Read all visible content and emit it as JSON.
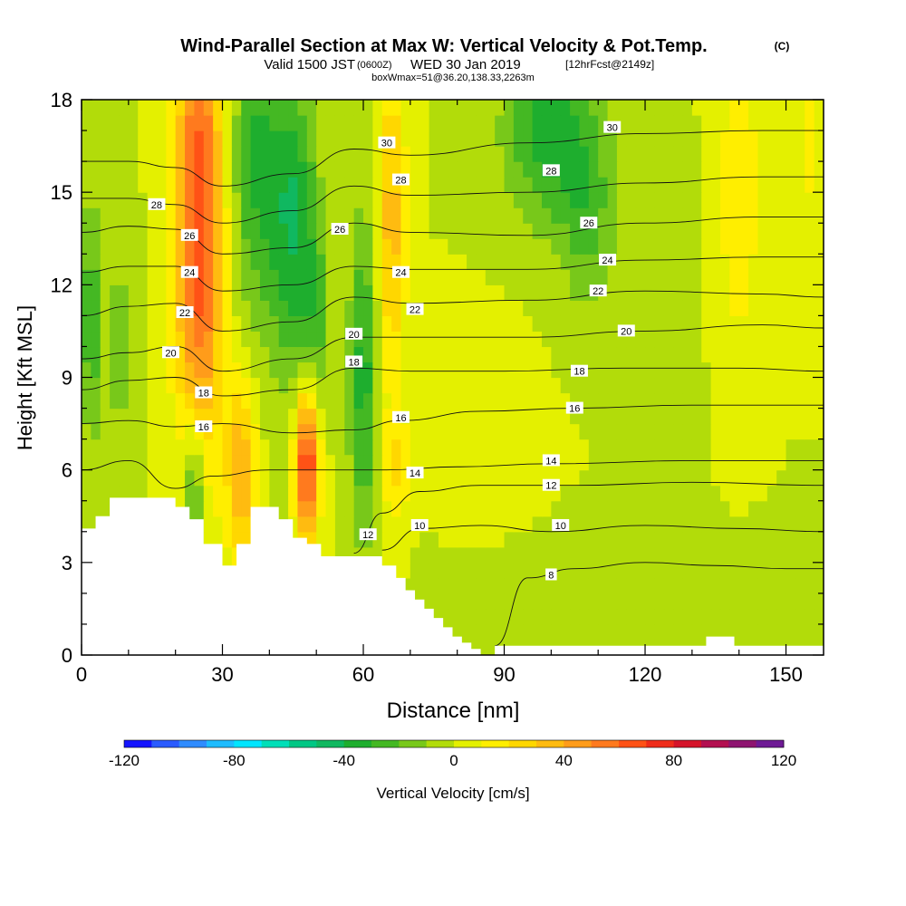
{
  "header": {
    "title": "Wind-Parallel Section at Max W: Vertical Velocity & Pot.Temp.",
    "copyright": "(C)",
    "valid_prefix": "Valid 1500 JST",
    "valid_utc": "(0600Z)",
    "valid_date": "WED 30 Jan 2019",
    "forecast_info": "[12hrFcst@2149z]",
    "box_info": "boxWmax=51@36.20,138.33,2263m"
  },
  "chart_data": {
    "type": "heatmap",
    "xlabel": "Distance [nm]",
    "ylabel": "Height [Kft MSL]",
    "xlim": [
      0,
      158
    ],
    "ylim": [
      0,
      18
    ],
    "x_ticks": [
      0,
      30,
      60,
      90,
      120,
      150
    ],
    "y_ticks": [
      0,
      3,
      6,
      9,
      12,
      15,
      18
    ],
    "x_tick_labels": [
      "0",
      "30",
      "60",
      "90",
      "120",
      "150"
    ],
    "y_tick_labels": [
      "0",
      "3",
      "6",
      "9",
      "12",
      "15",
      "18"
    ],
    "colorbar": {
      "label": "Vertical Velocity [cm/s]",
      "min": -120,
      "max": 120,
      "step": 10,
      "tick_values": [
        -120,
        -80,
        -40,
        0,
        40,
        80,
        120
      ],
      "tick_labels": [
        "-120",
        "-80",
        "-40",
        "0",
        "40",
        "80",
        "120"
      ],
      "colors": [
        "#1414ff",
        "#2a5bff",
        "#2f8cff",
        "#1ebcff",
        "#00e5ff",
        "#00dfb8",
        "#00c784",
        "#10b860",
        "#1eae2e",
        "#44b823",
        "#78c81a",
        "#b2dc0a",
        "#e4f000",
        "#ffee00",
        "#ffd700",
        "#ffbb10",
        "#ff9c1a",
        "#ff7a1e",
        "#ff5216",
        "#ef2c1a",
        "#d5142a",
        "#b31050",
        "#8e1470",
        "#6e1a95"
      ]
    },
    "terrain": [
      [
        0,
        4.1
      ],
      [
        3,
        4.1
      ],
      [
        3,
        4.5
      ],
      [
        6,
        4.5
      ],
      [
        6,
        5.1
      ],
      [
        20,
        5.1
      ],
      [
        20,
        4.8
      ],
      [
        23,
        4.8
      ],
      [
        23,
        4.4
      ],
      [
        26,
        4.4
      ],
      [
        26,
        3.6
      ],
      [
        30,
        3.6
      ],
      [
        30,
        2.9
      ],
      [
        33,
        2.9
      ],
      [
        33,
        3.6
      ],
      [
        36,
        3.6
      ],
      [
        36,
        4.8
      ],
      [
        42,
        4.8
      ],
      [
        42,
        4.4
      ],
      [
        45,
        4.4
      ],
      [
        45,
        3.8
      ],
      [
        48,
        3.8
      ],
      [
        48,
        3.6
      ],
      [
        51,
        3.6
      ],
      [
        51,
        3.2
      ],
      [
        64,
        3.2
      ],
      [
        64,
        2.9
      ],
      [
        67,
        2.9
      ],
      [
        67,
        2.5
      ],
      [
        69,
        2.5
      ],
      [
        69,
        2.1
      ],
      [
        71,
        2.1
      ],
      [
        71,
        1.8
      ],
      [
        73,
        1.8
      ],
      [
        73,
        1.5
      ],
      [
        75,
        1.5
      ],
      [
        75,
        1.2
      ],
      [
        77,
        1.2
      ],
      [
        77,
        0.9
      ],
      [
        79,
        0.9
      ],
      [
        79,
        0.6
      ],
      [
        81,
        0.6
      ],
      [
        81,
        0.4
      ],
      [
        83,
        0.4
      ],
      [
        83,
        0.2
      ],
      [
        85,
        0.2
      ],
      [
        85,
        0.0
      ],
      [
        88,
        0.0
      ],
      [
        88,
        0.3
      ],
      [
        133,
        0.3
      ],
      [
        133,
        0.6
      ],
      [
        139,
        0.6
      ],
      [
        139,
        0.3
      ],
      [
        158,
        0.3
      ]
    ],
    "velocity_features": [
      {
        "x": 25,
        "y_center": 14,
        "half_width": 5,
        "half_height": 8,
        "value": 70
      },
      {
        "x": 34,
        "y_center": 6,
        "half_width": 3,
        "half_height": 3,
        "value": 40
      },
      {
        "x": 8,
        "y_center": 10,
        "half_width": 3,
        "half_height": 4,
        "value": -15
      },
      {
        "x": 2,
        "y_center": 11,
        "half_width": 2,
        "half_height": 4,
        "value": -30
      },
      {
        "x": 24,
        "y_center": 5,
        "half_width": 2.5,
        "half_height": 3,
        "value": -40
      },
      {
        "x": 37,
        "y_center": 16,
        "half_width": 5,
        "half_height": 5,
        "value": -30
      },
      {
        "x": 45,
        "y_center": 14,
        "half_width": 5,
        "half_height": 5,
        "value": -40
      },
      {
        "x": 50,
        "y_center": 11,
        "half_width": 3,
        "half_height": 3,
        "value": -20
      },
      {
        "x": 48,
        "y_center": 6.2,
        "half_width": 2.5,
        "half_height": 2.5,
        "value": 75
      },
      {
        "x": 60,
        "y_center": 9,
        "half_width": 3,
        "half_height": 5,
        "value": -35
      },
      {
        "x": 66,
        "y_center": 14,
        "half_width": 3,
        "half_height": 5,
        "value": 35
      },
      {
        "x": 67,
        "y_center": 6,
        "half_width": 3,
        "half_height": 2,
        "value": 20
      },
      {
        "x": 100,
        "y_center": 17,
        "half_width": 10,
        "half_height": 3,
        "value": -35
      },
      {
        "x": 108,
        "y_center": 14,
        "half_width": 6,
        "half_height": 3,
        "value": -20
      },
      {
        "x": 140,
        "y_center": 15,
        "half_width": 4,
        "half_height": 5,
        "value": 20
      },
      {
        "x": 155,
        "y_center": 17,
        "half_width": 3,
        "half_height": 3,
        "value": 15
      },
      {
        "x": 128,
        "y_center": 9,
        "half_width": 3,
        "half_height": 5,
        "value": -5
      },
      {
        "x": 110,
        "y_center": 2,
        "half_width": 28,
        "half_height": 1.8,
        "value": -8
      },
      {
        "x": 86,
        "y_center": 7,
        "half_width": 10,
        "half_height": 3,
        "value": 7
      }
    ],
    "theta_contours": [
      {
        "label": "8",
        "points": [
          [
            88,
            0.3
          ],
          [
            95,
            2.5
          ],
          [
            105,
            2.8
          ],
          [
            120,
            3.0
          ],
          [
            135,
            2.9
          ],
          [
            150,
            2.8
          ],
          [
            158,
            2.8
          ]
        ],
        "label_at": [
          100,
          2.6
        ]
      },
      {
        "label": "10",
        "points": [
          [
            64,
            3.4
          ],
          [
            72,
            4.1
          ],
          [
            85,
            4.2
          ],
          [
            100,
            4.0
          ],
          [
            120,
            4.2
          ],
          [
            140,
            4.1
          ],
          [
            158,
            4.0
          ]
        ],
        "label_at": [
          102,
          4.2
        ]
      },
      {
        "label": "12",
        "points": [
          [
            58,
            3.3
          ],
          [
            64,
            4.6
          ],
          [
            72,
            5.3
          ],
          [
            85,
            5.5
          ],
          [
            105,
            5.5
          ],
          [
            130,
            5.6
          ],
          [
            158,
            5.5
          ]
        ],
        "label_at": [
          100,
          5.5
        ]
      },
      {
        "label": "14",
        "points": [
          [
            0,
            6.0
          ],
          [
            10,
            6.3
          ],
          [
            20,
            5.4
          ],
          [
            28,
            5.8
          ],
          [
            40,
            6.0
          ],
          [
            55,
            6.0
          ],
          [
            65,
            6.0
          ],
          [
            80,
            6.1
          ],
          [
            100,
            6.2
          ],
          [
            130,
            6.3
          ],
          [
            158,
            6.3
          ]
        ],
        "label_at": [
          100,
          6.3
        ]
      },
      {
        "label": "16",
        "points": [
          [
            0,
            7.5
          ],
          [
            10,
            7.6
          ],
          [
            20,
            7.4
          ],
          [
            30,
            7.5
          ],
          [
            45,
            7.2
          ],
          [
            58,
            7.3
          ],
          [
            68,
            7.6
          ],
          [
            85,
            7.9
          ],
          [
            105,
            8.0
          ],
          [
            130,
            8.1
          ],
          [
            158,
            8.1
          ]
        ],
        "label_at": [
          105,
          8.0
        ]
      },
      {
        "label": "18",
        "points": [
          [
            0,
            8.6
          ],
          [
            10,
            8.9
          ],
          [
            20,
            9.0
          ],
          [
            30,
            8.4
          ],
          [
            45,
            8.6
          ],
          [
            58,
            9.3
          ],
          [
            70,
            9.2
          ],
          [
            90,
            9.2
          ],
          [
            115,
            9.3
          ],
          [
            140,
            9.3
          ],
          [
            158,
            9.2
          ]
        ],
        "label_at": [
          106,
          9.2
        ]
      },
      {
        "label": "20",
        "points": [
          [
            0,
            9.6
          ],
          [
            10,
            9.8
          ],
          [
            20,
            10.0
          ],
          [
            30,
            9.2
          ],
          [
            45,
            9.6
          ],
          [
            58,
            10.3
          ],
          [
            70,
            10.3
          ],
          [
            95,
            10.3
          ],
          [
            120,
            10.5
          ],
          [
            145,
            10.7
          ],
          [
            158,
            10.6
          ]
        ],
        "label_at": [
          116,
          10.5
        ]
      },
      {
        "label": "22",
        "points": [
          [
            0,
            11.0
          ],
          [
            10,
            11.3
          ],
          [
            20,
            11.4
          ],
          [
            30,
            10.5
          ],
          [
            45,
            10.8
          ],
          [
            58,
            11.6
          ],
          [
            70,
            11.4
          ],
          [
            95,
            11.5
          ],
          [
            120,
            11.8
          ],
          [
            145,
            11.7
          ],
          [
            158,
            11.6
          ]
        ],
        "label_at": [
          110,
          11.8
        ]
      },
      {
        "label": "24",
        "points": [
          [
            0,
            12.4
          ],
          [
            10,
            12.6
          ],
          [
            20,
            12.6
          ],
          [
            30,
            11.8
          ],
          [
            45,
            12.0
          ],
          [
            58,
            12.6
          ],
          [
            70,
            12.5
          ],
          [
            95,
            12.5
          ],
          [
            120,
            12.8
          ],
          [
            145,
            12.9
          ],
          [
            158,
            12.9
          ]
        ],
        "label_at": [
          112,
          12.8
        ]
      },
      {
        "label": "26",
        "points": [
          [
            0,
            13.7
          ],
          [
            10,
            13.9
          ],
          [
            20,
            13.8
          ],
          [
            30,
            13.0
          ],
          [
            45,
            13.2
          ],
          [
            58,
            14.0
          ],
          [
            70,
            13.7
          ],
          [
            95,
            13.6
          ],
          [
            120,
            14.0
          ],
          [
            145,
            14.2
          ],
          [
            158,
            14.2
          ]
        ],
        "label_at": [
          108,
          14.0
        ]
      },
      {
        "label": "28",
        "points": [
          [
            0,
            14.8
          ],
          [
            10,
            14.8
          ],
          [
            20,
            14.6
          ],
          [
            30,
            14.0
          ],
          [
            45,
            14.4
          ],
          [
            58,
            15.2
          ],
          [
            70,
            14.9
          ],
          [
            95,
            15.0
          ],
          [
            120,
            15.3
          ],
          [
            145,
            15.5
          ],
          [
            158,
            15.5
          ]
        ],
        "label_at": [
          100,
          15.7
        ]
      },
      {
        "label": "30",
        "points": [
          [
            0,
            16.0
          ],
          [
            10,
            16.0
          ],
          [
            20,
            15.8
          ],
          [
            30,
            15.2
          ],
          [
            45,
            15.6
          ],
          [
            58,
            16.4
          ],
          [
            70,
            16.2
          ],
          [
            95,
            16.6
          ],
          [
            120,
            16.9
          ],
          [
            145,
            17.0
          ],
          [
            158,
            17.0
          ]
        ],
        "label_at": [
          113,
          17.1
        ]
      }
    ],
    "plot_labels": [
      {
        "text": "28",
        "at": [
          16,
          14.6
        ]
      },
      {
        "text": "26",
        "at": [
          23,
          13.6
        ]
      },
      {
        "text": "24",
        "at": [
          23,
          12.4
        ]
      },
      {
        "text": "22",
        "at": [
          22,
          11.1
        ]
      },
      {
        "text": "20",
        "at": [
          19,
          9.8
        ]
      },
      {
        "text": "18",
        "at": [
          26,
          8.5
        ]
      },
      {
        "text": "16",
        "at": [
          26,
          7.4
        ]
      },
      {
        "text": "30",
        "at": [
          65,
          16.6
        ]
      },
      {
        "text": "28",
        "at": [
          68,
          15.4
        ]
      },
      {
        "text": "26",
        "at": [
          55,
          13.8
        ]
      },
      {
        "text": "24",
        "at": [
          68,
          12.4
        ]
      },
      {
        "text": "22",
        "at": [
          71,
          11.2
        ]
      },
      {
        "text": "20",
        "at": [
          58,
          10.4
        ]
      },
      {
        "text": "18",
        "at": [
          58,
          9.5
        ]
      },
      {
        "text": "16",
        "at": [
          68,
          7.7
        ]
      },
      {
        "text": "14",
        "at": [
          71,
          5.9
        ]
      },
      {
        "text": "12",
        "at": [
          61,
          3.9
        ]
      },
      {
        "text": "10",
        "at": [
          72,
          4.2
        ]
      }
    ]
  }
}
